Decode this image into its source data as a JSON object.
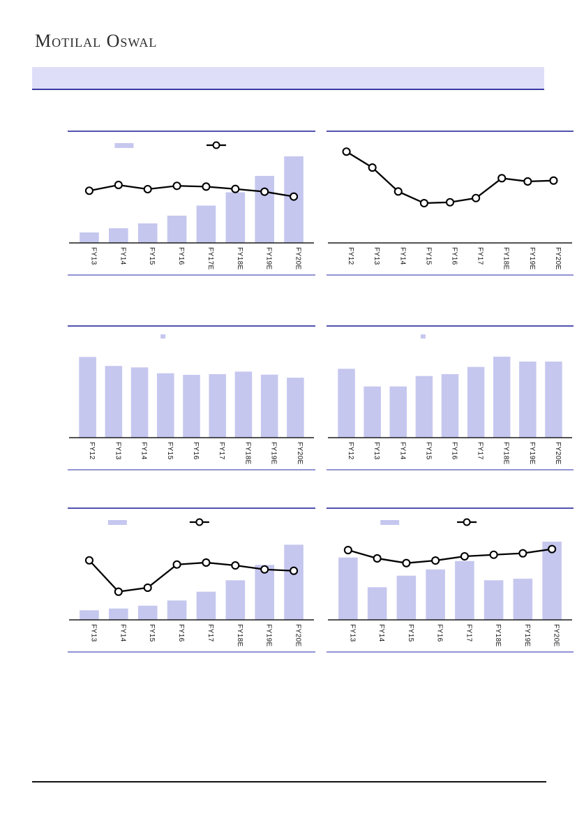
{
  "header": {
    "logo_text": "Motilal Oswal",
    "banner_title": "",
    "banner_color": "#dedef8",
    "banner_border_color": "#3a3aa0"
  },
  "colors": {
    "bar_fill": "#c6c7ef",
    "panel_top_border": "#5252b0",
    "panel_bottom_border": "#9393d5",
    "axis_color": "#1a1a1a",
    "line_color": "#000000",
    "marker_fill": "#ffffff",
    "label_color": "#141414",
    "footer_rule_color": "#111111"
  },
  "notes": {
    "values_unit": "percent of plot height (no numeric axis or data labels are visible in the screenshot)",
    "titles_and_legend_text": "chart titles and legend captions are blank/not rendered in the screenshot"
  },
  "chart_data": [
    {
      "name": "top-left",
      "type": "bar-line-combo",
      "title": "",
      "categories": [
        "FY13",
        "FY14",
        "FY15",
        "FY16",
        "FY17E",
        "FY18E",
        "FY19E",
        "FY20E"
      ],
      "series": [
        {
          "name": "bars",
          "type": "bar",
          "values": [
            10.7,
            15.0,
            20.0,
            27.9,
            38.2,
            51.8,
            68.6,
            88.6
          ]
        },
        {
          "name": "line",
          "type": "line",
          "values": [
            53.4,
            59.3,
            55.0,
            58.4,
            57.6,
            55.2,
            52.4,
            47.4
          ]
        }
      ],
      "legend": {
        "bar_swatch": "wide",
        "swatch_x_frac": 0.19,
        "line_marker": true,
        "marker_x_frac": 0.6
      },
      "grid": false,
      "y_axis_labels_visible": false
    },
    {
      "name": "top-right",
      "type": "line",
      "title": "",
      "categories": [
        "FY12",
        "FY13",
        "FY14",
        "FY15",
        "FY16",
        "FY17",
        "FY18E",
        "FY19E",
        "FY20E"
      ],
      "series": [
        {
          "name": "line",
          "type": "line",
          "values": [
            93.4,
            77.1,
            52.6,
            40.7,
            41.6,
            45.9,
            66.2,
            62.9,
            63.8
          ]
        }
      ],
      "legend": null,
      "grid": false,
      "y_axis_labels_visible": false
    },
    {
      "name": "middle-left",
      "type": "bar",
      "title": "",
      "categories": [
        "FY12",
        "FY13",
        "FY14",
        "FY15",
        "FY16",
        "FY17",
        "FY18E",
        "FY19E",
        "FY20E"
      ],
      "series": [
        {
          "name": "bars",
          "type": "bar",
          "values": [
            82.6,
            73.4,
            71.9,
            65.9,
            64.3,
            65.0,
            67.6,
            64.5,
            61.4
          ]
        }
      ],
      "legend": {
        "bar_swatch": "dot",
        "swatch_x_frac": 0.375,
        "line_marker": false
      },
      "grid": false,
      "y_axis_labels_visible": false
    },
    {
      "name": "middle-right",
      "type": "bar",
      "title": "",
      "categories": [
        "FY12",
        "FY13",
        "FY14",
        "FY15",
        "FY16",
        "FY17",
        "FY18E",
        "FY19E",
        "FY20E"
      ],
      "series": [
        {
          "name": "bars",
          "type": "bar",
          "values": [
            70.5,
            52.4,
            52.4,
            63.1,
            65.0,
            72.4,
            82.9,
            77.9,
            77.9
          ]
        }
      ],
      "legend": {
        "bar_swatch": "dot",
        "swatch_x_frac": 0.381,
        "line_marker": false
      },
      "grid": false,
      "y_axis_labels_visible": false
    },
    {
      "name": "bottom-left",
      "type": "bar-line-combo",
      "title": "",
      "categories": [
        "FY13",
        "FY14",
        "FY15",
        "FY16",
        "FY17",
        "FY18E",
        "FY19E",
        "FY20E"
      ],
      "series": [
        {
          "name": "bars",
          "type": "bar",
          "values": [
            9.8,
            11.6,
            14.5,
            19.8,
            28.8,
            40.5,
            56.2,
            76.9
          ]
        },
        {
          "name": "line",
          "type": "line",
          "values": [
            60.9,
            28.8,
            32.9,
            56.6,
            58.6,
            55.7,
            51.6,
            50.2
          ]
        }
      ],
      "legend": {
        "bar_swatch": "wide",
        "swatch_x_frac": 0.163,
        "line_marker": true,
        "marker_x_frac": 0.532
      },
      "grid": false,
      "y_axis_labels_visible": false
    },
    {
      "name": "bottom-right",
      "type": "bar-line-combo",
      "title": "",
      "categories": [
        "FY13",
        "FY14",
        "FY15",
        "FY16",
        "FY17",
        "FY18E",
        "FY19E",
        "FY20E"
      ],
      "series": [
        {
          "name": "bars",
          "type": "bar",
          "values": [
            63.8,
            33.4,
            45.2,
            51.6,
            60.2,
            40.5,
            42.1,
            80.0
          ]
        },
        {
          "name": "line",
          "type": "line",
          "values": [
            71.4,
            62.9,
            58.1,
            60.7,
            65.0,
            66.6,
            68.1,
            72.4
          ]
        }
      ],
      "legend": {
        "bar_swatch": "wide",
        "swatch_x_frac": 0.218,
        "line_marker": true,
        "marker_x_frac": 0.568
      },
      "grid": false,
      "y_axis_labels_visible": false
    }
  ]
}
